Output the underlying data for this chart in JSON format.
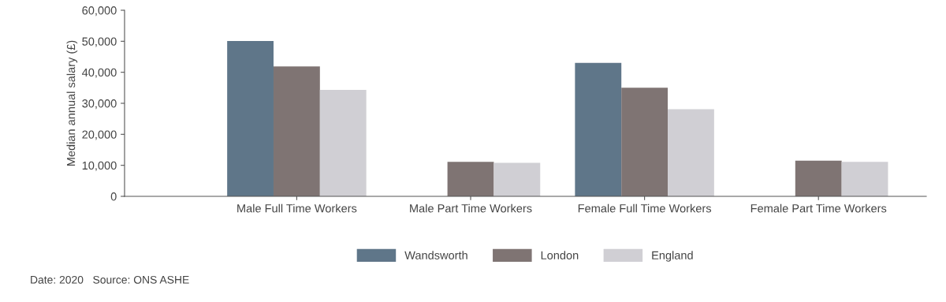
{
  "chart_data": {
    "type": "bar",
    "ylabel": "Median annual salary (£)",
    "categories": [
      "Male Full Time Workers",
      "Male Part Time Workers",
      "Female Full Time Workers",
      "Female Part Time Workers"
    ],
    "series": [
      {
        "name": "Wandsworth",
        "color": "#5f7689",
        "values": [
          50100,
          null,
          43000,
          null
        ]
      },
      {
        "name": "London",
        "color": "#7f7473",
        "values": [
          41900,
          11100,
          35000,
          11500
        ]
      },
      {
        "name": "England",
        "color": "#d0cfd4",
        "values": [
          34300,
          10800,
          28100,
          11100
        ]
      }
    ],
    "ylim": [
      0,
      60000
    ],
    "yticks": [
      {
        "value": 0,
        "label": "0"
      },
      {
        "value": 10000,
        "label": "10,000"
      },
      {
        "value": 20000,
        "label": "20,000"
      },
      {
        "value": 30000,
        "label": "30,000"
      },
      {
        "value": 40000,
        "label": "40,000"
      },
      {
        "value": 50000,
        "label": "50,000"
      },
      {
        "value": 60000,
        "label": "60,000"
      }
    ],
    "grid": false,
    "legend": "bottom",
    "annotations": [
      "Date: 2020   Source: ONS ASHE"
    ]
  }
}
